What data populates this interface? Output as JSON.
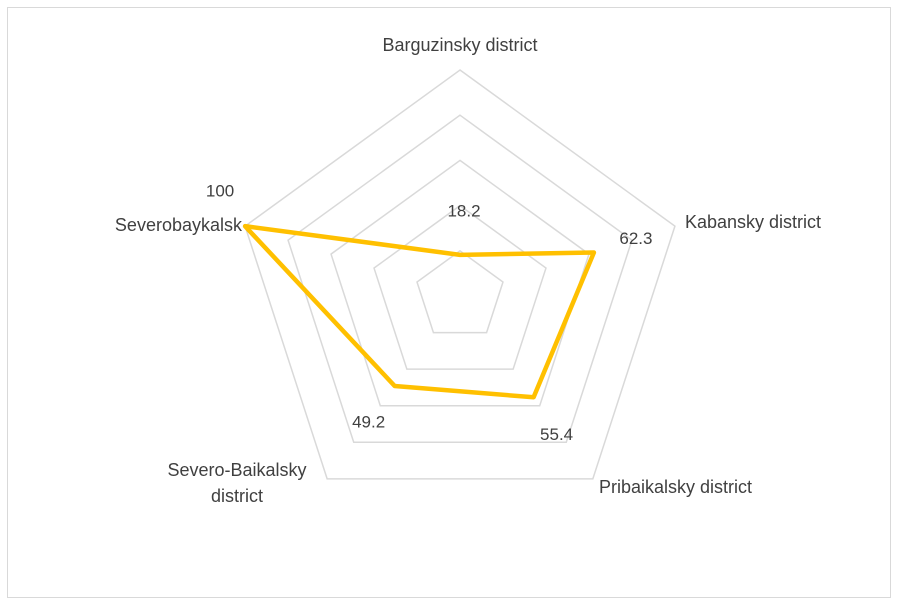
{
  "chart_data": {
    "type": "radar",
    "categories": [
      "Barguzinsky district",
      "Kabansky district",
      "Pribaikalsky district",
      "Severo-Baikalsky district",
      "Severobaykalsk"
    ],
    "values": [
      18.2,
      62.3,
      55.4,
      49.2,
      100
    ],
    "color": "#FFC000",
    "rlim": [
      0,
      100
    ],
    "rticks": [
      20,
      40,
      60,
      80,
      100
    ],
    "grid": true
  }
}
